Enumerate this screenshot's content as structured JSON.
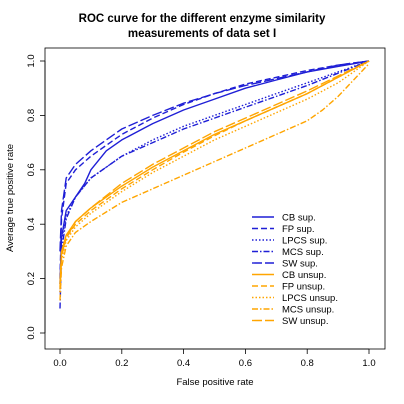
{
  "chart_data": {
    "type": "line",
    "title": [
      "ROC curve for the different enzyme similarity",
      "measurements of data set I"
    ],
    "xlabel": "False positive rate",
    "ylabel": "Average true positive rate",
    "xlim": [
      0,
      1
    ],
    "ylim": [
      0,
      1
    ],
    "xticks": [
      "0.0",
      "0.2",
      "0.4",
      "0.6",
      "0.8",
      "1.0"
    ],
    "yticks": [
      "0.0",
      "0.2",
      "0.4",
      "0.6",
      "0.8",
      "1.0"
    ],
    "grid": false,
    "legend_position": "bottom-right",
    "colors": {
      "supervised": "#1f1fd6",
      "unsupervised": "#ffa500"
    },
    "series": [
      {
        "name": "CB sup.",
        "group": "supervised",
        "dash": "solid",
        "x": [
          0,
          0.005,
          0.02,
          0.05,
          0.08,
          0.1,
          0.15,
          0.2,
          0.3,
          0.4,
          0.5,
          0.6,
          0.7,
          0.8,
          0.9,
          1.0
        ],
        "y": [
          0.18,
          0.35,
          0.45,
          0.5,
          0.55,
          0.6,
          0.67,
          0.71,
          0.77,
          0.82,
          0.86,
          0.9,
          0.93,
          0.96,
          0.98,
          1.0
        ]
      },
      {
        "name": "FP sup.",
        "group": "supervised",
        "dash": "dashed",
        "x": [
          0,
          0.005,
          0.02,
          0.05,
          0.1,
          0.15,
          0.2,
          0.3,
          0.4,
          0.5,
          0.6,
          0.7,
          0.8,
          0.9,
          1.0
        ],
        "y": [
          0.2,
          0.42,
          0.55,
          0.6,
          0.65,
          0.69,
          0.73,
          0.79,
          0.84,
          0.88,
          0.915,
          0.94,
          0.965,
          0.985,
          1.0
        ]
      },
      {
        "name": "LPCS sup.",
        "group": "supervised",
        "dash": "dotted",
        "x": [
          0,
          0.005,
          0.02,
          0.05,
          0.1,
          0.2,
          0.3,
          0.4,
          0.5,
          0.6,
          0.7,
          0.8,
          0.9,
          1.0
        ],
        "y": [
          0.15,
          0.34,
          0.43,
          0.5,
          0.57,
          0.65,
          0.71,
          0.76,
          0.8,
          0.84,
          0.88,
          0.92,
          0.96,
          1.0
        ]
      },
      {
        "name": "MCS sup.",
        "group": "supervised",
        "dash": "dashdot",
        "x": [
          0,
          0.005,
          0.02,
          0.05,
          0.1,
          0.2,
          0.3,
          0.4,
          0.5,
          0.6,
          0.7,
          0.8,
          0.9,
          1.0
        ],
        "y": [
          0.09,
          0.3,
          0.42,
          0.5,
          0.57,
          0.65,
          0.7,
          0.75,
          0.79,
          0.83,
          0.87,
          0.91,
          0.955,
          1.0
        ]
      },
      {
        "name": "SW sup.",
        "group": "supervised",
        "dash": "longdash",
        "x": [
          0,
          0.005,
          0.02,
          0.05,
          0.1,
          0.15,
          0.2,
          0.3,
          0.4,
          0.5,
          0.6,
          0.7,
          0.8,
          0.9,
          1.0
        ],
        "y": [
          0.3,
          0.45,
          0.57,
          0.62,
          0.67,
          0.71,
          0.75,
          0.8,
          0.845,
          0.88,
          0.91,
          0.935,
          0.96,
          0.985,
          1.0
        ]
      },
      {
        "name": "CB unsup.",
        "group": "unsupervised",
        "dash": "solid",
        "x": [
          0,
          0.005,
          0.02,
          0.05,
          0.1,
          0.2,
          0.3,
          0.4,
          0.5,
          0.6,
          0.7,
          0.8,
          0.9,
          1.0
        ],
        "y": [
          0.18,
          0.3,
          0.36,
          0.41,
          0.46,
          0.54,
          0.61,
          0.67,
          0.73,
          0.78,
          0.83,
          0.88,
          0.94,
          1.0
        ]
      },
      {
        "name": "FP unsup.",
        "group": "unsupervised",
        "dash": "dashed",
        "x": [
          0,
          0.005,
          0.02,
          0.05,
          0.1,
          0.2,
          0.3,
          0.4,
          0.5,
          0.6,
          0.7,
          0.8,
          0.9,
          1.0
        ],
        "y": [
          0.16,
          0.28,
          0.35,
          0.4,
          0.45,
          0.53,
          0.6,
          0.665,
          0.725,
          0.78,
          0.83,
          0.88,
          0.94,
          1.0
        ]
      },
      {
        "name": "LPCS unsup.",
        "group": "unsupervised",
        "dash": "dotted",
        "x": [
          0,
          0.005,
          0.02,
          0.05,
          0.1,
          0.2,
          0.3,
          0.4,
          0.5,
          0.6,
          0.7,
          0.8,
          0.9,
          1.0
        ],
        "y": [
          0.15,
          0.27,
          0.34,
          0.39,
          0.44,
          0.52,
          0.59,
          0.65,
          0.71,
          0.76,
          0.81,
          0.86,
          0.92,
          1.0
        ]
      },
      {
        "name": "MCS unsup.",
        "group": "unsupervised",
        "dash": "dashdot",
        "x": [
          0,
          0.005,
          0.02,
          0.05,
          0.1,
          0.2,
          0.3,
          0.4,
          0.5,
          0.6,
          0.7,
          0.8,
          0.85,
          0.9,
          1.0
        ],
        "y": [
          0.12,
          0.24,
          0.32,
          0.37,
          0.41,
          0.48,
          0.53,
          0.58,
          0.63,
          0.68,
          0.73,
          0.78,
          0.82,
          0.87,
          0.99
        ]
      },
      {
        "name": "SW unsup.",
        "group": "unsupervised",
        "dash": "longdash",
        "x": [
          0,
          0.005,
          0.02,
          0.05,
          0.1,
          0.2,
          0.3,
          0.4,
          0.5,
          0.6,
          0.7,
          0.8,
          0.9,
          1.0
        ],
        "y": [
          0.17,
          0.29,
          0.35,
          0.41,
          0.46,
          0.55,
          0.62,
          0.68,
          0.74,
          0.79,
          0.84,
          0.89,
          0.945,
          1.0
        ]
      }
    ]
  }
}
